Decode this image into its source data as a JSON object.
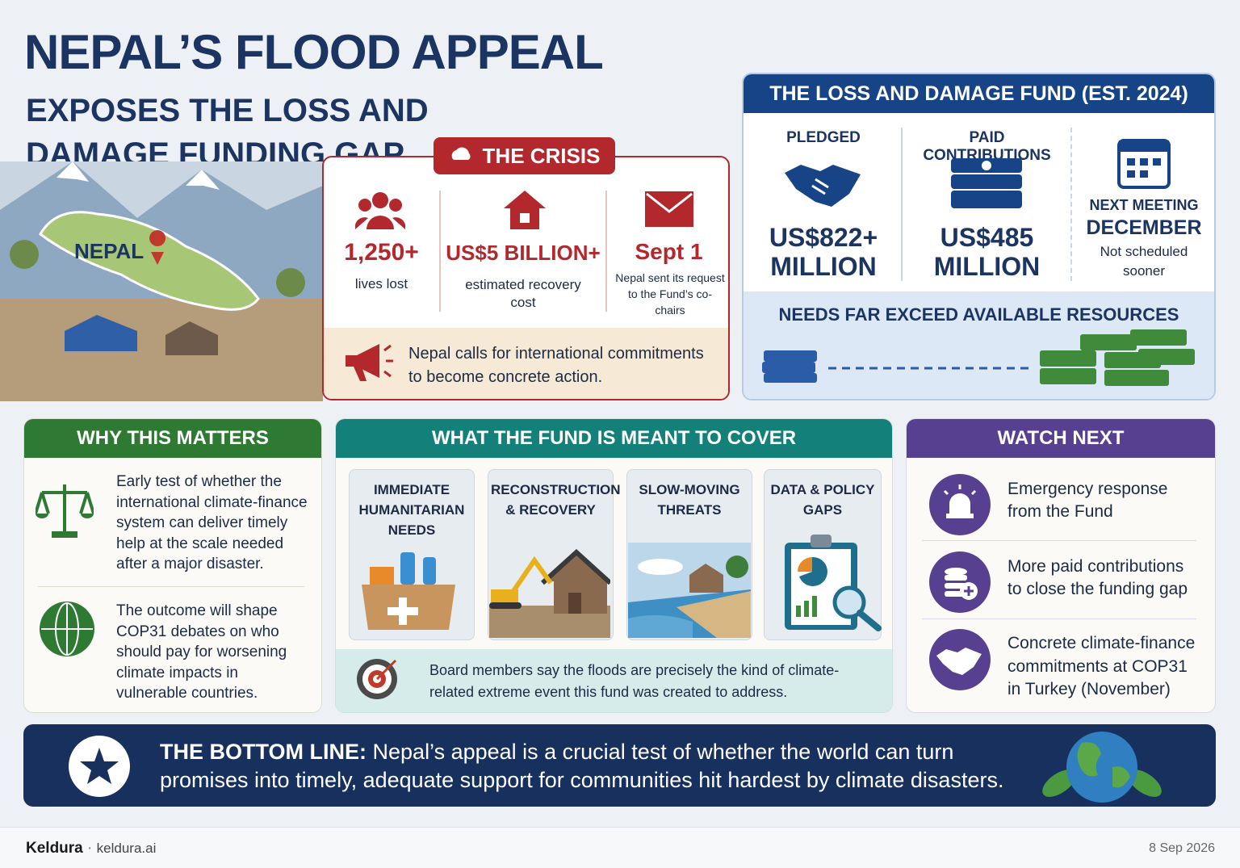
{
  "header": {
    "title": "NEPAL’S FLOOD APPEAL",
    "subtitle": "EXPOSES THE LOSS AND DAMAGE FUNDING GAP",
    "map_label": "NEPAL"
  },
  "crisis": {
    "heading": "THE CRISIS",
    "stats": [
      {
        "value": "1,250+",
        "label": "lives lost"
      },
      {
        "value": "US$5 BILLION+",
        "label": "estimated recovery cost"
      },
      {
        "value": "Sept 1",
        "label": "Nepal sent its request to the Fund’s co-chairs"
      }
    ],
    "call": "Nepal calls for international commitments to become concrete action."
  },
  "fund": {
    "heading": "THE LOSS AND DAMAGE FUND (EST. 2024)",
    "pledged_label": "PLEDGED",
    "pledged_value": "US$822+ MILLION",
    "paid_label": "PAID CONTRIBUTIONS",
    "paid_value": "US$485 MILLION",
    "meeting_label": "NEXT MEETING",
    "meeting_value": "DECEMBER",
    "meeting_note": "Not scheduled sooner",
    "gap": "NEEDS FAR EXCEED AVAILABLE RESOURCES"
  },
  "why": {
    "heading": "WHY THIS MATTERS",
    "points": [
      "Early test of whether the international climate-finance system can deliver timely help at the scale needed after a major disaster.",
      "The outcome will shape COP31 debates on who should pay for worsening climate impacts in vulnerable countries."
    ]
  },
  "cover": {
    "heading": "WHAT THE FUND IS MEANT TO COVER",
    "items": [
      "IMMEDIATE HUMANITARIAN NEEDS",
      "RECONSTRUCTION & RECOVERY",
      "SLOW-MOVING THREATS",
      "DATA & POLICY GAPS"
    ],
    "note": "Board members say the floods are precisely the kind of climate-related extreme event this fund was created to address."
  },
  "watch": {
    "heading": "WATCH NEXT",
    "items": [
      "Emergency response from the Fund",
      "More paid contributions to close the funding gap",
      "Concrete climate-finance commitments at COP31 in Turkey (November)"
    ]
  },
  "bottom_line": {
    "label": "THE BOTTOM LINE:",
    "text": "Nepal’s appeal is a crucial test of whether the world can turn promises into timely, adequate support for communities hit hardest by climate disasters."
  },
  "footer": {
    "brand": "Keldura",
    "site": "keldura.ai",
    "date": "8 Sep 2026"
  }
}
